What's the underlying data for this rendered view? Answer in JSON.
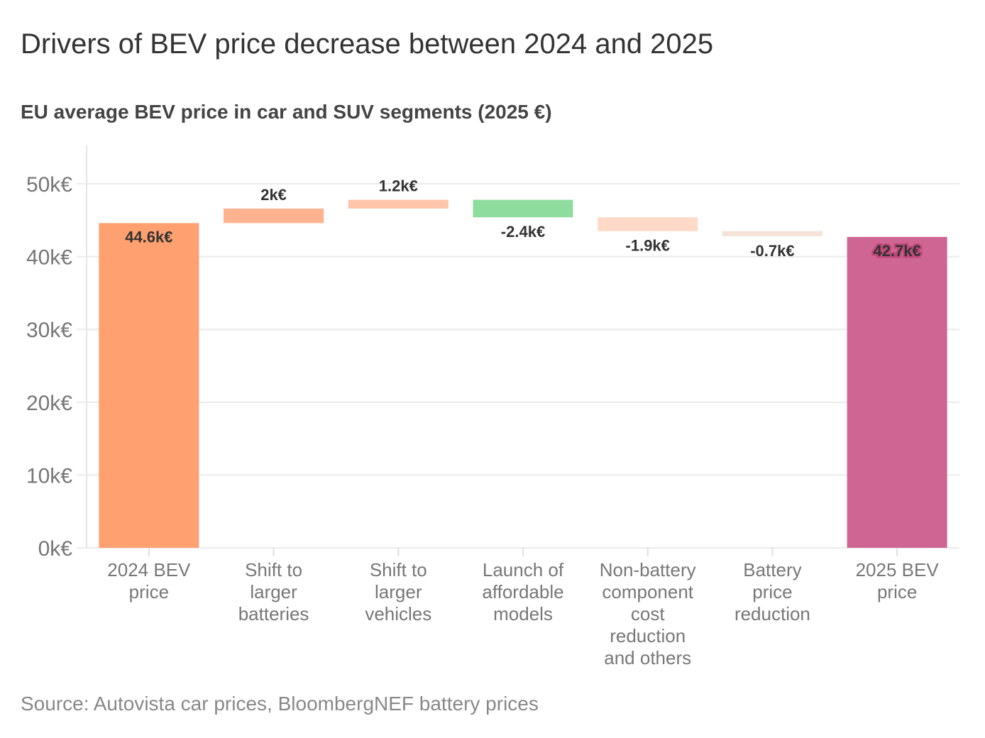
{
  "title": "Drivers of BEV price decrease between 2024 and 2025",
  "subtitle": "EU average BEV price in car and SUV segments (2025 €)",
  "source": "Source: Autovista car prices, BloombergNEF battery prices",
  "chart_data": {
    "type": "waterfall",
    "title": "Drivers of BEV price decrease between 2024 and 2025",
    "subtitle": "EU average BEV price in car and SUV segments (2025 €)",
    "ylim": [
      0,
      52
    ],
    "yticks": [
      0,
      10,
      20,
      30,
      40,
      50
    ],
    "ytick_labels": [
      "0k€",
      "10k€",
      "20k€",
      "30k€",
      "40k€",
      "50k€"
    ],
    "grid": true,
    "bars": [
      {
        "category": "2024 BEV\nprice",
        "kind": "total",
        "value": 44.6,
        "label": "44.6k€",
        "color": "#ffa070"
      },
      {
        "category": "Shift to\nlarger\nbatteries",
        "kind": "delta",
        "value": 2,
        "label": "2k€",
        "color": "#ffb290"
      },
      {
        "category": "Shift to\nlarger\nvehicles",
        "kind": "delta",
        "value": 1.2,
        "label": "1.2k€",
        "color": "#ffc5aa"
      },
      {
        "category": "Launch of\naffordable\nmodels",
        "kind": "delta",
        "value": -2.4,
        "label": "-2.4k€",
        "color": "#8edc9e"
      },
      {
        "category": "Non-battery\ncomponent\ncost\nreduction\nand others",
        "kind": "delta",
        "value": -1.9,
        "label": "-1.9k€",
        "color": "#ffdac8"
      },
      {
        "category": "Battery\nprice\nreduction",
        "kind": "delta",
        "value": -0.7,
        "label": "-0.7k€",
        "color": "#f6e3d8"
      },
      {
        "category": "2025 BEV\nprice",
        "kind": "total",
        "value": 42.7,
        "label": "42.7k€",
        "color": "#cf6592"
      }
    ]
  }
}
